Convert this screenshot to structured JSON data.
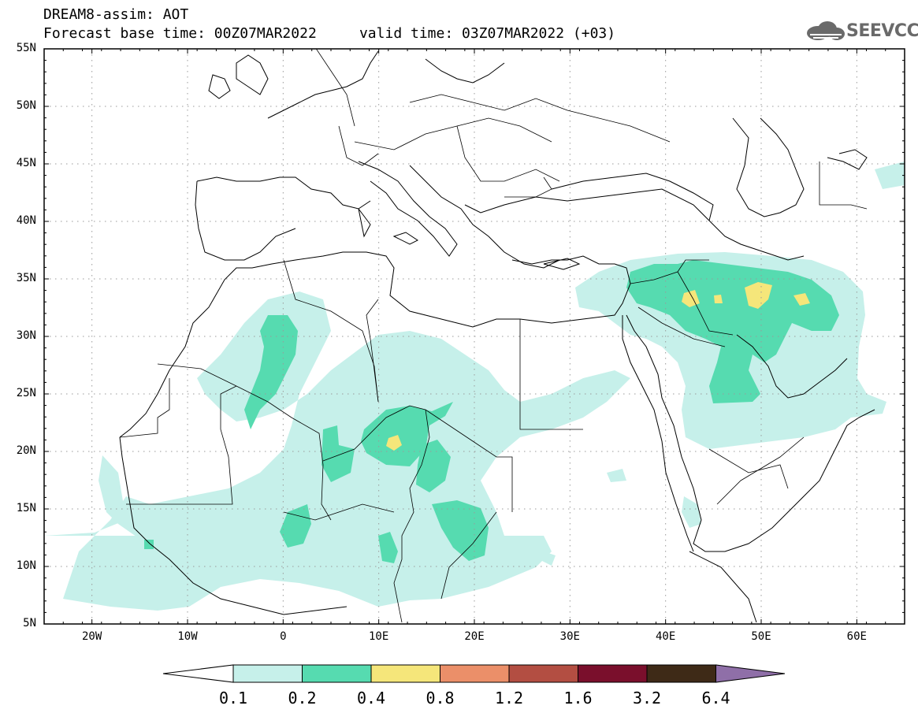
{
  "header": {
    "line1": "DREAM8-assim: AOT",
    "line2": "Forecast base time: 00Z07MAR2022     valid time: 03Z07MAR2022 (+03)"
  },
  "logo": {
    "text": "SEEVCCC",
    "icon": "cloud-icon"
  },
  "map": {
    "lon_range": [
      -25,
      65
    ],
    "lat_range": [
      5,
      55
    ],
    "lat_labels": [
      "55N",
      "50N",
      "45N",
      "40N",
      "35N",
      "30N",
      "25N",
      "20N",
      "15N",
      "10N",
      "5N"
    ],
    "lon_labels": [
      "20W",
      "10W",
      "0",
      "10E",
      "20E",
      "30E",
      "40E",
      "50E",
      "60E"
    ],
    "grid": "dotted"
  },
  "colorbar": {
    "labels": [
      "0.1",
      "0.2",
      "0.4",
      "0.8",
      "1.2",
      "1.6",
      "3.2",
      "6.4"
    ],
    "colors": [
      "#c6f0ea",
      "#56dbb0",
      "#f5e67a",
      "#eb8f69",
      "#b34e42",
      "#7a0f2c",
      "#3e2a17",
      "#8f6fa8"
    ]
  }
}
